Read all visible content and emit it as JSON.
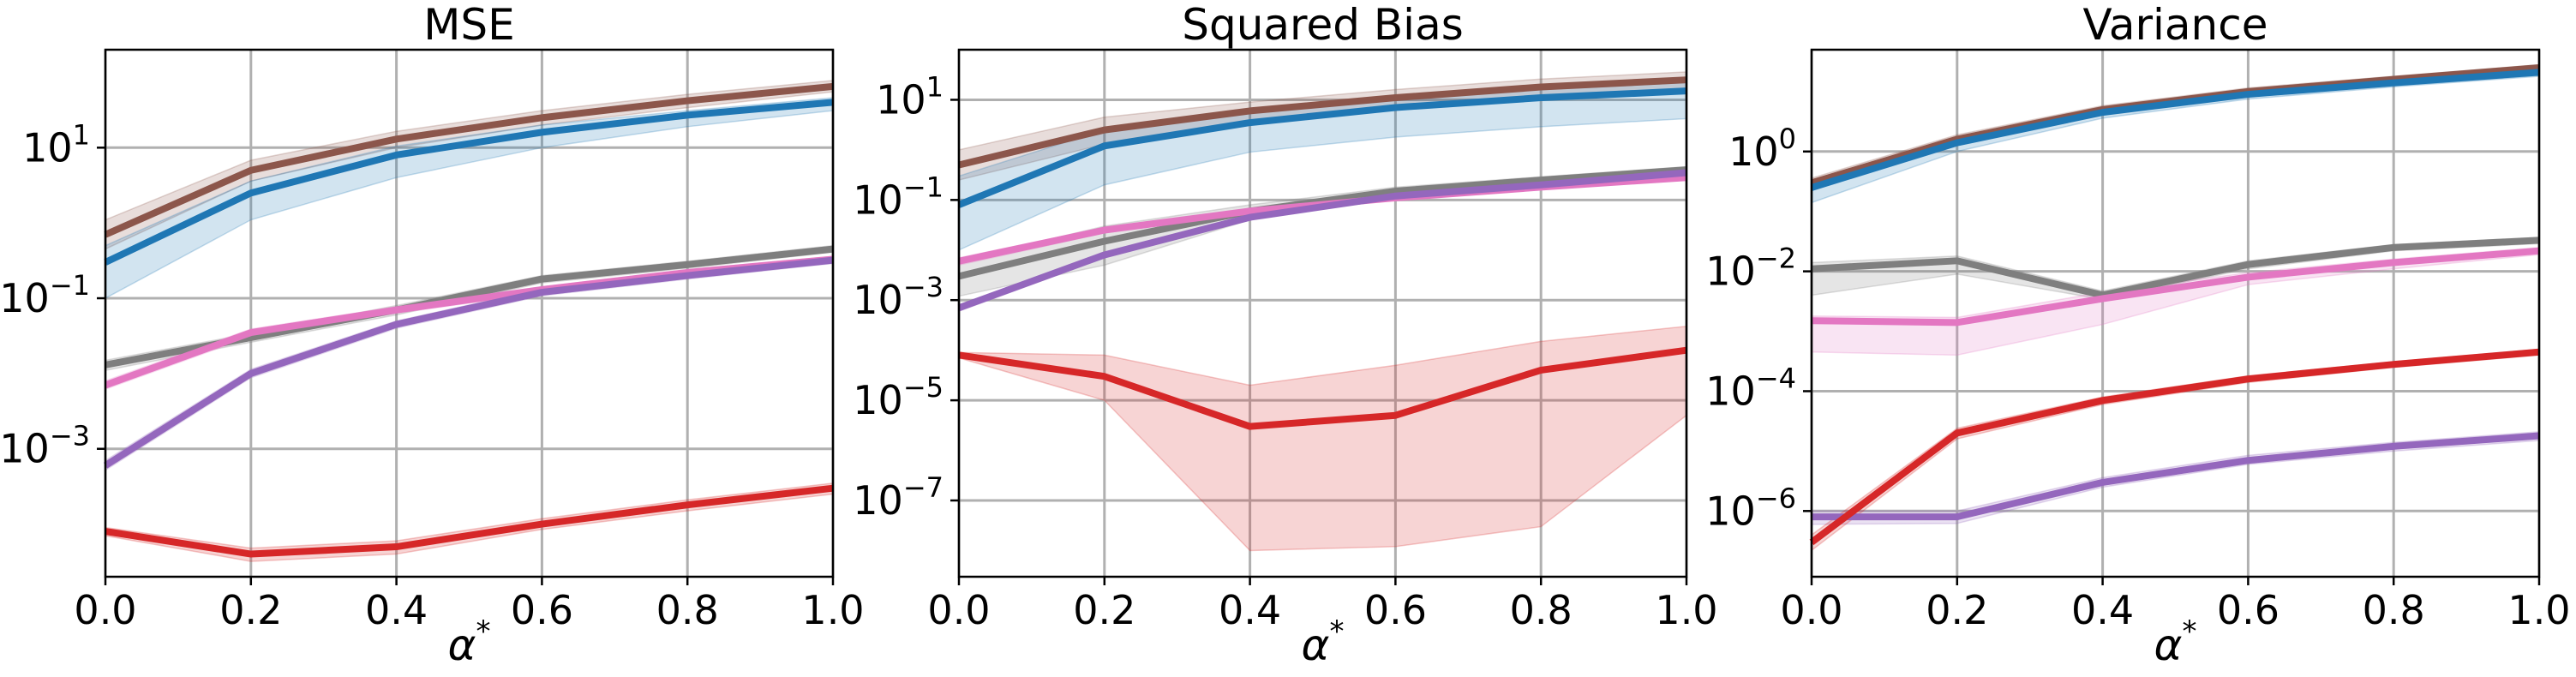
{
  "colors": {
    "brown": "#8c564b",
    "blue": "#1f77b4",
    "gray": "#7f7f7f",
    "pink": "#e377c2",
    "purple": "#9467bd",
    "red": "#d62728"
  },
  "chart_data": [
    {
      "type": "line",
      "title": "MSE",
      "xlabel": "α*",
      "ylabel": "",
      "yscale": "log",
      "xlim": [
        0.0,
        1.0
      ],
      "ylim": [
        2e-05,
        200
      ],
      "grid": true,
      "x_ticks": [
        "0.0",
        "0.2",
        "0.4",
        "0.6",
        "0.8",
        "1.0"
      ],
      "y_ticks": [
        {
          "value": 10,
          "base": "10",
          "exp": "1"
        },
        {
          "value": 0.1,
          "base": "10",
          "exp": "−1"
        },
        {
          "value": 0.001,
          "base": "10",
          "exp": "−3"
        }
      ],
      "x": [
        0.0,
        0.2,
        0.4,
        0.6,
        0.8,
        1.0
      ],
      "series": [
        {
          "color": "brown",
          "values": [
            0.7,
            5,
            13,
            25,
            42,
            65
          ],
          "lower": [
            0.45,
            3.6,
            10,
            20,
            34,
            55
          ],
          "upper": [
            1.1,
            6.8,
            16.5,
            31,
            51,
            78
          ]
        },
        {
          "color": "blue",
          "values": [
            0.3,
            2.5,
            8,
            16,
            27,
            40
          ],
          "lower": [
            0.1,
            1.1,
            4,
            10,
            19,
            31
          ],
          "upper": [
            0.5,
            3.6,
            10.5,
            20,
            31,
            46
          ]
        },
        {
          "color": "gray",
          "values": [
            0.013,
            0.03,
            0.07,
            0.18,
            0.28,
            0.45
          ],
          "lower": [
            0.011,
            0.026,
            0.06,
            0.16,
            0.25,
            0.41
          ],
          "upper": [
            0.015,
            0.034,
            0.08,
            0.2,
            0.31,
            0.5
          ]
        },
        {
          "color": "pink",
          "values": [
            0.007,
            0.035,
            0.07,
            0.13,
            0.22,
            0.33
          ],
          "lower": [
            0.0062,
            0.031,
            0.063,
            0.118,
            0.2,
            0.3
          ],
          "upper": [
            0.008,
            0.039,
            0.077,
            0.142,
            0.24,
            0.36
          ]
        },
        {
          "color": "purple",
          "values": [
            0.0006,
            0.01,
            0.045,
            0.12,
            0.2,
            0.32
          ],
          "lower": [
            0.00052,
            0.0088,
            0.04,
            0.108,
            0.18,
            0.29
          ],
          "upper": [
            0.0007,
            0.0114,
            0.05,
            0.132,
            0.22,
            0.35
          ]
        },
        {
          "color": "red",
          "values": [
            8e-05,
            4e-05,
            5e-05,
            0.0001,
            0.00018,
            0.0003
          ],
          "lower": [
            7e-05,
            3.2e-05,
            4e-05,
            8.5e-05,
            0.00015,
            0.00025
          ],
          "upper": [
            9e-05,
            4.8e-05,
            6e-05,
            0.000118,
            0.00021,
            0.00035
          ]
        }
      ]
    },
    {
      "type": "line",
      "title": "Squared Bias",
      "xlabel": "α*",
      "ylabel": "",
      "yscale": "log",
      "xlim": [
        0.0,
        1.0
      ],
      "ylim": [
        3e-09,
        100
      ],
      "grid": true,
      "x_ticks": [
        "0.0",
        "0.2",
        "0.4",
        "0.6",
        "0.8",
        "1.0"
      ],
      "y_ticks": [
        {
          "value": 10,
          "base": "10",
          "exp": "1"
        },
        {
          "value": 0.1,
          "base": "10",
          "exp": "−1"
        },
        {
          "value": 0.001,
          "base": "10",
          "exp": "−3"
        },
        {
          "value": 1e-05,
          "base": "10",
          "exp": "−5"
        },
        {
          "value": 1e-07,
          "base": "10",
          "exp": "−7"
        }
      ],
      "x": [
        0.0,
        0.2,
        0.4,
        0.6,
        0.8,
        1.0
      ],
      "series": [
        {
          "color": "brown",
          "values": [
            0.5,
            2.5,
            6,
            11,
            18,
            25
          ],
          "lower": [
            0.25,
            1.3,
            3.8,
            7.5,
            12,
            17
          ],
          "upper": [
            1.0,
            4.5,
            9,
            16,
            26,
            36
          ]
        },
        {
          "color": "blue",
          "values": [
            0.08,
            1.2,
            3.5,
            7,
            11,
            15
          ],
          "lower": [
            0.01,
            0.2,
            0.9,
            1.8,
            2.9,
            4.2
          ],
          "upper": [
            0.3,
            2.5,
            6,
            11,
            16,
            22
          ]
        },
        {
          "color": "gray",
          "values": [
            0.003,
            0.015,
            0.06,
            0.15,
            0.25,
            0.4
          ],
          "lower": [
            0.0012,
            0.005,
            0.04,
            0.12,
            0.21,
            0.34
          ],
          "upper": [
            0.006,
            0.03,
            0.08,
            0.18,
            0.29,
            0.46
          ]
        },
        {
          "color": "pink",
          "values": [
            0.006,
            0.025,
            0.06,
            0.11,
            0.18,
            0.28
          ],
          "lower": [
            0.005,
            0.022,
            0.054,
            0.1,
            0.165,
            0.26
          ],
          "upper": [
            0.007,
            0.028,
            0.066,
            0.12,
            0.195,
            0.3
          ]
        },
        {
          "color": "purple",
          "values": [
            0.0007,
            0.008,
            0.045,
            0.12,
            0.2,
            0.35
          ],
          "lower": [
            0.0006,
            0.007,
            0.04,
            0.108,
            0.18,
            0.32
          ],
          "upper": [
            0.0008,
            0.009,
            0.05,
            0.132,
            0.22,
            0.38
          ]
        },
        {
          "color": "red",
          "values": [
            8e-05,
            3e-05,
            3e-06,
            5e-06,
            4e-05,
            0.0001
          ],
          "lower": [
            7e-05,
            1e-05,
            1e-08,
            1.2e-08,
            3e-08,
            5e-06
          ],
          "upper": [
            9e-05,
            8e-05,
            2e-05,
            5e-05,
            0.00015,
            0.0003
          ]
        }
      ]
    },
    {
      "type": "line",
      "title": "Variance",
      "xlabel": "α*",
      "ylabel": "",
      "yscale": "log",
      "xlim": [
        0.0,
        1.0
      ],
      "ylim": [
        8e-08,
        50
      ],
      "grid": true,
      "x_ticks": [
        "0.0",
        "0.2",
        "0.4",
        "0.6",
        "0.8",
        "1.0"
      ],
      "y_ticks": [
        {
          "value": 1,
          "base": "10",
          "exp": "0"
        },
        {
          "value": 0.01,
          "base": "10",
          "exp": "−2"
        },
        {
          "value": 0.0001,
          "base": "10",
          "exp": "−4"
        },
        {
          "value": 1e-06,
          "base": "10",
          "exp": "−6"
        }
      ],
      "x": [
        0.0,
        0.2,
        0.4,
        0.6,
        0.8,
        1.0
      ],
      "series": [
        {
          "color": "brown",
          "values": [
            0.3,
            1.6,
            5,
            10,
            16,
            25
          ],
          "lower": [
            0.24,
            1.35,
            4.3,
            8.8,
            14,
            22
          ],
          "upper": [
            0.36,
            1.9,
            5.8,
            11.5,
            18,
            28
          ]
        },
        {
          "color": "blue",
          "values": [
            0.25,
            1.4,
            4.5,
            9,
            14,
            21
          ],
          "lower": [
            0.14,
            1.0,
            3.6,
            7.5,
            12,
            18
          ],
          "upper": [
            0.33,
            1.7,
            5.2,
            10.2,
            15.5,
            23
          ]
        },
        {
          "color": "gray",
          "values": [
            0.011,
            0.015,
            0.004,
            0.013,
            0.025,
            0.033
          ],
          "lower": [
            0.004,
            0.009,
            0.0034,
            0.011,
            0.022,
            0.029
          ],
          "upper": [
            0.014,
            0.018,
            0.0047,
            0.015,
            0.028,
            0.037
          ]
        },
        {
          "color": "pink",
          "values": [
            0.0015,
            0.0014,
            0.0035,
            0.008,
            0.014,
            0.022
          ],
          "lower": [
            0.00045,
            0.0004,
            0.0013,
            0.006,
            0.011,
            0.019
          ],
          "upper": [
            0.0018,
            0.0017,
            0.0045,
            0.0095,
            0.016,
            0.025
          ]
        },
        {
          "color": "purple",
          "values": [
            8e-07,
            8e-07,
            3e-06,
            7e-06,
            1.2e-05,
            1.8e-05
          ],
          "lower": [
            6e-07,
            6.2e-07,
            2.5e-06,
            6e-06,
            1e-05,
            1.5e-05
          ],
          "upper": [
            1e-06,
            1e-06,
            3.6e-06,
            8.5e-06,
            1.4e-05,
            2.1e-05
          ]
        },
        {
          "color": "red",
          "values": [
            3e-07,
            2e-05,
            7e-05,
            0.00016,
            0.00028,
            0.00045
          ],
          "lower": [
            2.2e-07,
            1.6e-05,
            6e-05,
            0.00014,
            0.00025,
            0.0004
          ],
          "upper": [
            4e-07,
            2.4e-05,
            8e-05,
            0.00018,
            0.00031,
            0.0005
          ]
        }
      ]
    }
  ]
}
